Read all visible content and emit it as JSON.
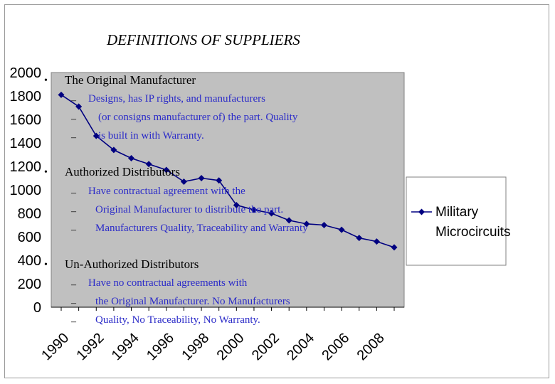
{
  "title": "DEFINITIONS OF SUPPLIERS",
  "sections": [
    {
      "heading": "The Original Manufacturer",
      "lines": [
        "Designs, has IP rights, and manufacturers",
        "(or consigns manufacturer of) the part.  Quality",
        "is built in with Warranty."
      ]
    },
    {
      "heading": "Authorized Distributors",
      "lines": [
        "Have contractual agreement with the",
        "Original Manufacturer to distribute the part.",
        "Manufacturers Quality, Traceability and Warranty"
      ]
    },
    {
      "heading": "Un-Authorized Distributors",
      "lines": [
        "Have no contractual agreements with",
        "the Original Manufacturer.  No Manufacturers",
        "Quality, No Traceability, No Warranty."
      ]
    }
  ],
  "chart_data": {
    "type": "line",
    "x": [
      1990,
      1991,
      1992,
      1993,
      1994,
      1995,
      1996,
      1997,
      1998,
      1999,
      2000,
      2001,
      2002,
      2003,
      2004,
      2005,
      2006,
      2007,
      2008,
      2009
    ],
    "series": [
      {
        "name": "Military Microcircuits",
        "values": [
          1810,
          1710,
          1460,
          1340,
          1270,
          1220,
          1170,
          1070,
          1100,
          1080,
          870,
          830,
          800,
          740,
          710,
          700,
          660,
          590,
          560,
          510
        ]
      }
    ],
    "ylim": [
      0,
      2000
    ],
    "yticks": [
      0,
      200,
      400,
      600,
      800,
      1000,
      1200,
      1400,
      1600,
      1800,
      2000
    ],
    "xtick_labels": [
      "1990",
      "1992",
      "1994",
      "1996",
      "1998",
      "2000",
      "2002",
      "2004",
      "2006",
      "2008"
    ],
    "grid": false,
    "legend": "right",
    "plot_background": "#c0c0c0",
    "series_color": "#000080"
  }
}
